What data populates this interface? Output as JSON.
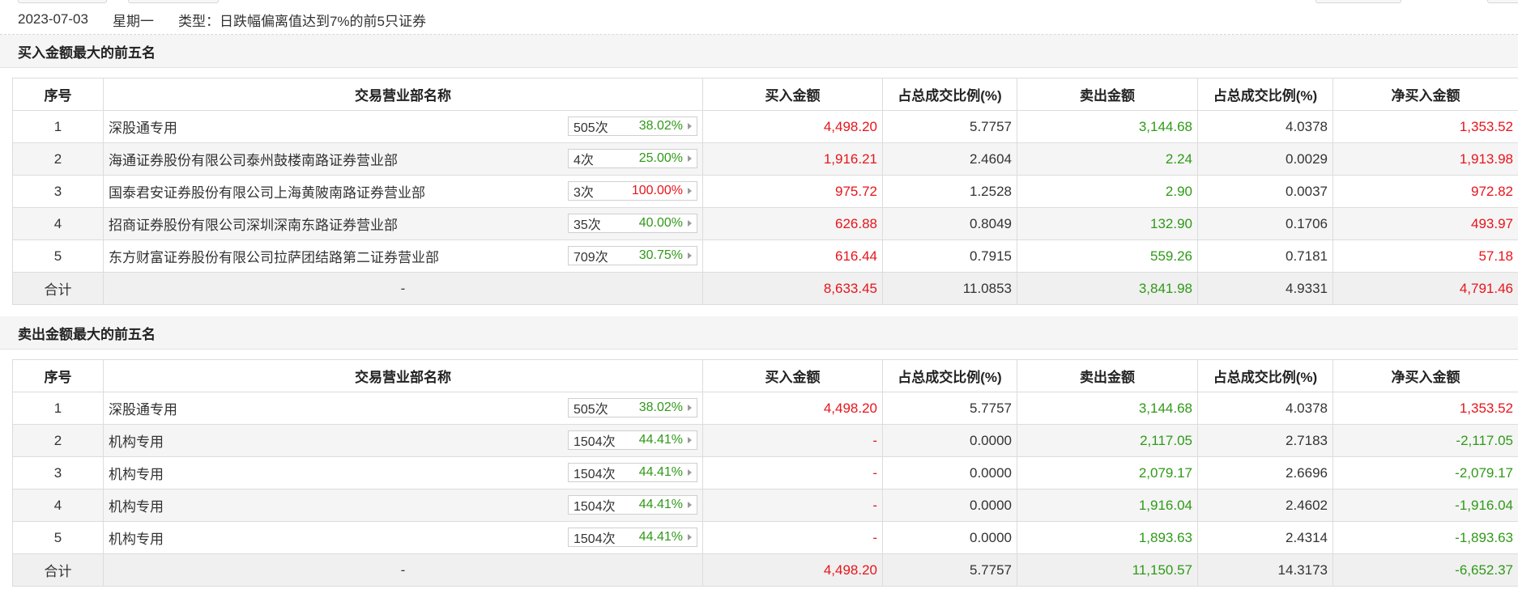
{
  "info": {
    "date": "2023-07-03",
    "weekday": "星期一",
    "type_label": "类型：",
    "type_value": "日跌幅偏离值达到7%的前5只证券"
  },
  "columns": [
    "序号",
    "交易营业部名称",
    "买入金额",
    "占总成交比例(%)",
    "卖出金额",
    "占总成交比例(%)",
    "净买入金额"
  ],
  "buy_section": {
    "title": "买入金额最大的前五名",
    "rows": [
      {
        "no": "1",
        "name": "深股通专用",
        "count": "505次",
        "pct": "38.02%",
        "pct_color": "green",
        "buy": "4,498.20",
        "buy_ratio": "5.7757",
        "sell": "3,144.68",
        "sell_ratio": "4.0378",
        "net": "1,353.52"
      },
      {
        "no": "2",
        "name": "海通证券股份有限公司泰州鼓楼南路证券营业部",
        "count": "4次",
        "pct": "25.00%",
        "pct_color": "green",
        "buy": "1,916.21",
        "buy_ratio": "2.4604",
        "sell": "2.24",
        "sell_ratio": "0.0029",
        "net": "1,913.98"
      },
      {
        "no": "3",
        "name": "国泰君安证券股份有限公司上海黄陂南路证券营业部",
        "count": "3次",
        "pct": "100.00%",
        "pct_color": "red",
        "buy": "975.72",
        "buy_ratio": "1.2528",
        "sell": "2.90",
        "sell_ratio": "0.0037",
        "net": "972.82"
      },
      {
        "no": "4",
        "name": "招商证券股份有限公司深圳深南东路证券营业部",
        "count": "35次",
        "pct": "40.00%",
        "pct_color": "green",
        "buy": "626.88",
        "buy_ratio": "0.8049",
        "sell": "132.90",
        "sell_ratio": "0.1706",
        "net": "493.97"
      },
      {
        "no": "5",
        "name": "东方财富证券股份有限公司拉萨团结路第二证券营业部",
        "count": "709次",
        "pct": "30.75%",
        "pct_color": "green",
        "buy": "616.44",
        "buy_ratio": "0.7915",
        "sell": "559.26",
        "sell_ratio": "0.7181",
        "net": "57.18"
      }
    ],
    "total": {
      "label": "合计",
      "name": "-",
      "buy": "8,633.45",
      "buy_ratio": "11.0853",
      "sell": "3,841.98",
      "sell_ratio": "4.9331",
      "net": "4,791.46"
    }
  },
  "sell_section": {
    "title": "卖出金额最大的前五名",
    "rows": [
      {
        "no": "1",
        "name": "深股通专用",
        "count": "505次",
        "pct": "38.02%",
        "pct_color": "green",
        "buy": "4,498.20",
        "buy_ratio": "5.7757",
        "sell": "3,144.68",
        "sell_ratio": "4.0378",
        "net": "1,353.52"
      },
      {
        "no": "2",
        "name": "机构专用",
        "count": "1504次",
        "pct": "44.41%",
        "pct_color": "green",
        "buy": "-",
        "buy_ratio": "0.0000",
        "sell": "2,117.05",
        "sell_ratio": "2.7183",
        "net": "-2,117.05"
      },
      {
        "no": "3",
        "name": "机构专用",
        "count": "1504次",
        "pct": "44.41%",
        "pct_color": "green",
        "buy": "-",
        "buy_ratio": "0.0000",
        "sell": "2,079.17",
        "sell_ratio": "2.6696",
        "net": "-2,079.17"
      },
      {
        "no": "4",
        "name": "机构专用",
        "count": "1504次",
        "pct": "44.41%",
        "pct_color": "green",
        "buy": "-",
        "buy_ratio": "0.0000",
        "sell": "1,916.04",
        "sell_ratio": "2.4602",
        "net": "-1,916.04"
      },
      {
        "no": "5",
        "name": "机构专用",
        "count": "1504次",
        "pct": "44.41%",
        "pct_color": "green",
        "buy": "-",
        "buy_ratio": "0.0000",
        "sell": "1,893.63",
        "sell_ratio": "2.4314",
        "net": "-1,893.63"
      }
    ],
    "total": {
      "label": "合计",
      "name": "-",
      "buy": "4,498.20",
      "buy_ratio": "5.7757",
      "sell": "11,150.57",
      "sell_ratio": "14.3173",
      "net": "-6,652.37"
    }
  },
  "colors": {
    "red": "#e8141b",
    "green": "#2f9a18",
    "row_alt": "#f5f5f5",
    "border": "#dcdcdc"
  }
}
